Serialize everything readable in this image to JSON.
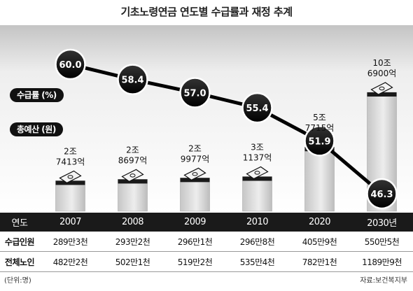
{
  "title": "기초노령연금 연도별 수급률과 재정 추계",
  "legend": {
    "rate_label": "수급률 (%)",
    "budget_label": "총예산 (원)"
  },
  "chart_data": {
    "type": "bar",
    "title": "기초노령연금 연도별 수급률과 재정 추계",
    "categories": [
      "2007",
      "2008",
      "2009",
      "2010",
      "2020",
      "2030년"
    ],
    "series": [
      {
        "name": "수급률 (%)",
        "type": "line",
        "values": [
          60.0,
          58.4,
          57.0,
          55.4,
          51.9,
          46.3
        ],
        "labels": [
          "60.0",
          "58.4",
          "57.0",
          "55.4",
          "51.9",
          "46.3"
        ]
      },
      {
        "name": "총예산 (원)",
        "type": "bar",
        "values": [
          27413,
          28697,
          29977,
          31137,
          57715,
          106900
        ],
        "labels": [
          [
            "2조",
            "7413억"
          ],
          [
            "2조",
            "8697억"
          ],
          [
            "2조",
            "9977억"
          ],
          [
            "3조",
            "1137억"
          ],
          [
            "5조",
            "7715억"
          ],
          [
            "10조",
            "6900억"
          ]
        ]
      }
    ]
  },
  "table": {
    "year_header": "연도",
    "rows": [
      {
        "label": "수급인원",
        "values": [
          "289만3천",
          "293만2천",
          "296만1천",
          "296만8천",
          "405만9천",
          "550만5천"
        ]
      },
      {
        "label": "전체노인",
        "values": [
          "482만2천",
          "502만1천",
          "519만2천",
          "535만4천",
          "782만1천",
          "1189만9천"
        ]
      }
    ]
  },
  "notes": {
    "unit": "(단위:명)",
    "source": "자료:보건복지부"
  }
}
